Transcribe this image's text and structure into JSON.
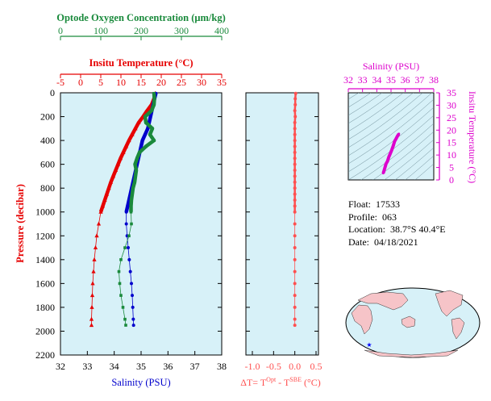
{
  "oxygen_axis": {
    "label": "Optode Oxygen Concentration (μm/kg)",
    "ticks": [
      0,
      100,
      200,
      300,
      400
    ],
    "range": [
      0,
      400
    ],
    "color": "#1a8a3c"
  },
  "temp_axis": {
    "label": "Insitu Temperature (°C)",
    "ticks": [
      -5,
      0,
      5,
      10,
      15,
      20,
      25,
      30,
      35
    ],
    "range": [
      -5,
      35
    ],
    "color": "#e60000"
  },
  "pressure_axis": {
    "label": "Pressure (decibar)",
    "ticks": [
      0,
      200,
      400,
      600,
      800,
      1000,
      1200,
      1400,
      1600,
      1800,
      2000,
      2200
    ],
    "range": [
      0,
      2200
    ]
  },
  "salinity_axis": {
    "label": "Salinity (PSU)",
    "ticks": [
      32,
      33,
      34,
      35,
      36,
      37,
      38
    ],
    "range": [
      32,
      38
    ],
    "color": "#0000cc"
  },
  "dt_axis": {
    "label_prefix": "ΔT= T",
    "label_sup1": "Opt",
    "label_mid": " - T",
    "label_sup2": "SBE",
    "label_suffix": " (°C)",
    "ticks": [
      "-1.0",
      "-0.5",
      "0.0",
      "0.5"
    ],
    "range": [
      -1.0,
      0.5
    ],
    "color": "#ff5050"
  },
  "ts_inset": {
    "top_label": "Salinity (PSU)",
    "top_ticks": [
      32,
      33,
      34,
      35,
      36,
      37,
      38
    ],
    "right_label": "Insitu Temperature (°C)",
    "right_ticks": [
      0,
      5,
      10,
      15,
      20,
      25,
      30,
      35
    ],
    "color": "#dd00cc"
  },
  "float_info": {
    "float_label": "Float:",
    "float_value": "17533",
    "profile_label": "Profile:",
    "profile_value": "063",
    "location_label": "Location:",
    "location_value": "38.7°S  40.4°E",
    "date_label": "Date:",
    "date_value": "04/18/2021"
  },
  "chart_data": {
    "type": "line",
    "y_axis": "pressure",
    "ylim": [
      0,
      2200
    ],
    "series": [
      {
        "name": "Insitu Temperature (°C)",
        "color": "#e60000",
        "marker": "triangle",
        "pressure": [
          5,
          50,
          100,
          150,
          200,
          250,
          300,
          350,
          400,
          450,
          500,
          550,
          600,
          650,
          700,
          750,
          800,
          850,
          900,
          950,
          1000,
          1100,
          1200,
          1300,
          1400,
          1500,
          1600,
          1700,
          1800,
          1900,
          1950
        ],
        "values": [
          18.5,
          18.2,
          17.6,
          16.5,
          15.5,
          14.4,
          13.6,
          12.8,
          12.0,
          11.3,
          10.6,
          9.9,
          9.3,
          8.7,
          8.1,
          7.5,
          7.0,
          6.5,
          6.0,
          5.5,
          5.0,
          4.5,
          4.0,
          3.7,
          3.4,
          3.2,
          3.0,
          2.9,
          2.8,
          2.7,
          2.7
        ]
      },
      {
        "name": "Salinity (PSU)",
        "color": "#0000cc",
        "marker": "circle",
        "pressure": [
          5,
          50,
          100,
          150,
          200,
          250,
          300,
          350,
          400,
          450,
          500,
          550,
          600,
          650,
          700,
          750,
          800,
          850,
          900,
          950,
          1000,
          1100,
          1200,
          1300,
          1400,
          1500,
          1600,
          1700,
          1800,
          1900,
          1950
        ],
        "values": [
          35.55,
          35.5,
          35.45,
          35.4,
          35.35,
          35.3,
          35.25,
          35.15,
          35.05,
          35.0,
          34.95,
          34.9,
          34.85,
          34.8,
          34.75,
          34.7,
          34.65,
          34.6,
          34.55,
          34.5,
          34.45,
          34.45,
          34.48,
          34.52,
          34.56,
          34.6,
          34.64,
          34.67,
          34.69,
          34.71,
          34.72
        ]
      },
      {
        "name": "Optode Oxygen Concentration (μm/kg)",
        "color": "#1a8a3c",
        "marker": "square",
        "pressure": [
          5,
          50,
          100,
          150,
          200,
          250,
          300,
          350,
          400,
          450,
          500,
          550,
          600,
          650,
          700,
          750,
          800,
          850,
          900,
          950,
          1000,
          1100,
          1200,
          1300,
          1400,
          1500,
          1600,
          1700,
          1800,
          1900,
          1950
        ],
        "values": [
          232,
          233,
          232,
          226,
          210,
          212,
          228,
          222,
          232,
          212,
          196,
          190,
          185,
          188,
          186,
          184,
          180,
          178,
          176,
          175,
          175,
          176,
          170,
          160,
          150,
          145,
          147,
          150,
          155,
          160,
          162
        ]
      },
      {
        "name": "ΔT",
        "color": "#ff5050",
        "marker": "circle",
        "pressure": [
          5,
          50,
          100,
          150,
          200,
          250,
          300,
          350,
          400,
          450,
          500,
          550,
          600,
          650,
          700,
          750,
          800,
          850,
          900,
          950,
          1000,
          1100,
          1200,
          1300,
          1400,
          1500,
          1600,
          1700,
          1800,
          1900,
          1950
        ],
        "values": [
          0.02,
          0.01,
          0.01,
          0.0,
          0.01,
          0.0,
          0.0,
          0.0,
          0.0,
          0.0,
          0.0,
          0.0,
          0.0,
          0.0,
          0.0,
          0.0,
          0.0,
          0.0,
          0.0,
          0.0,
          0.0,
          0.0,
          0.0,
          0.0,
          0.0,
          0.0,
          0.0,
          0.0,
          0.0,
          0.0,
          0.0
        ]
      }
    ],
    "ts_inset_data": {
      "x_label": "Salinity (PSU)",
      "y_label": "Insitu Temperature (°C)",
      "xlim": [
        32,
        38
      ],
      "ylim": [
        0,
        35
      ],
      "salinity": [
        34.45,
        34.5,
        34.55,
        34.6,
        34.65,
        34.75,
        34.85,
        34.95,
        35.05,
        35.15,
        35.25,
        35.35,
        35.45,
        35.55
      ],
      "temperature": [
        2.7,
        3.5,
        4.5,
        5.5,
        6.5,
        7.5,
        9.3,
        10.6,
        12.0,
        13.6,
        15.5,
        16.5,
        17.6,
        18.5
      ]
    },
    "map_marker": {
      "lat": -38.7,
      "lon": 40.4
    }
  }
}
